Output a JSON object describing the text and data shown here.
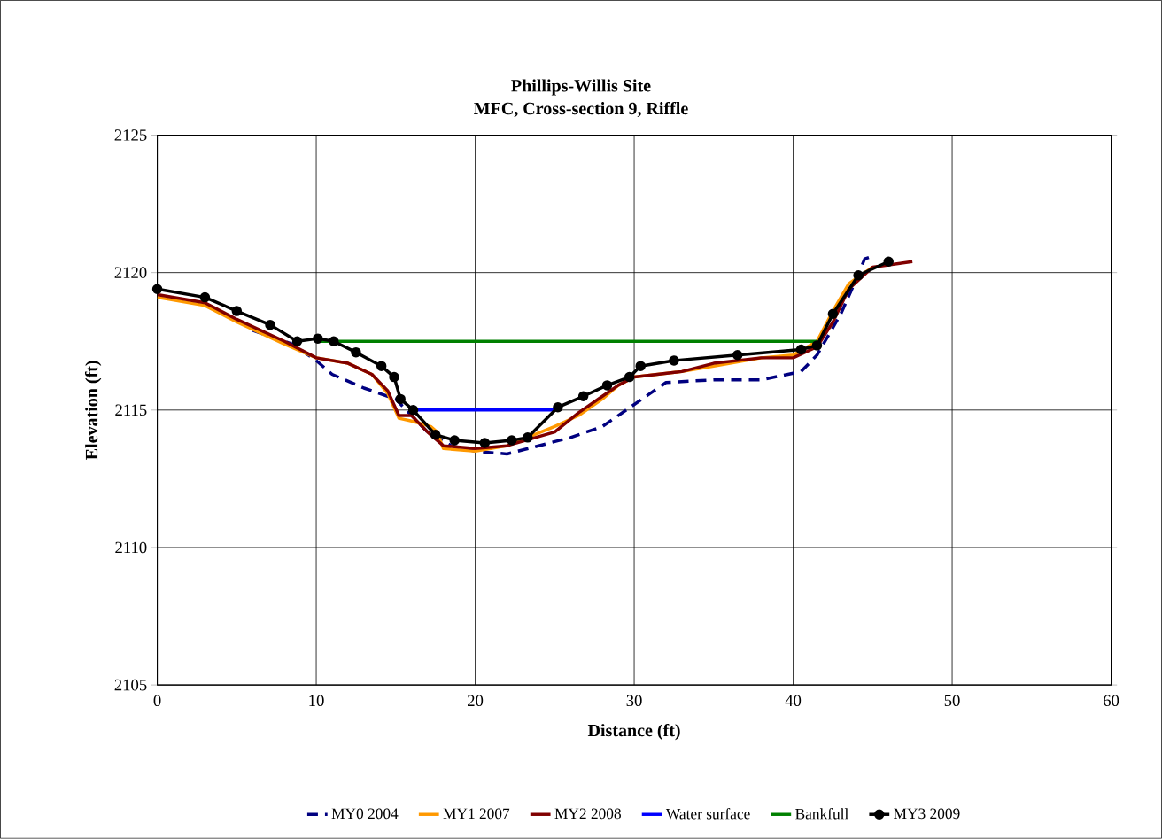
{
  "chart_data": {
    "type": "line",
    "title": "Phillips-Willis Site",
    "subtitle": "MFC, Cross-section 9, Riffle",
    "xlabel": "Distance (ft)",
    "ylabel": "Elevation (ft)",
    "xlim": [
      0,
      60
    ],
    "xticks": [
      0,
      10,
      20,
      30,
      40,
      50,
      60
    ],
    "ylim": [
      2105,
      2125
    ],
    "yticks": [
      2105,
      2110,
      2115,
      2120,
      2125
    ],
    "grid": true,
    "legend": "bottom",
    "series": [
      {
        "name": "MY0 2004",
        "color": "#000080",
        "line_style": "dashed",
        "marker": "none",
        "x": [
          6,
          8.5,
          10,
          11,
          13,
          15,
          17,
          18.5,
          20,
          22,
          24,
          26,
          28,
          29.5,
          31,
          32,
          35,
          38,
          40.5,
          41.5,
          43,
          44,
          44.5,
          45
        ],
        "values": [
          2117.9,
          2117.4,
          2116.8,
          2116.3,
          2115.8,
          2115.4,
          2114.2,
          2113.7,
          2113.5,
          2113.4,
          2113.7,
          2114.0,
          2114.4,
          2115.0,
          2115.6,
          2116.0,
          2116.1,
          2116.1,
          2116.4,
          2117.0,
          2118.5,
          2119.8,
          2120.5,
          2120.6
        ]
      },
      {
        "name": "MY1 2007",
        "color": "#ff9900",
        "line_style": "solid",
        "marker": "none",
        "x": [
          0,
          3,
          5,
          8,
          10,
          12,
          13.5,
          14.5,
          15.2,
          16,
          17.2,
          17.6,
          18,
          20,
          22,
          25,
          26.5,
          28,
          29,
          30,
          33,
          35,
          38,
          40,
          41.5,
          42.5,
          43.5,
          45
        ],
        "values": [
          2119.1,
          2118.8,
          2118.2,
          2117.4,
          2116.9,
          2116.7,
          2116.3,
          2115.6,
          2114.7,
          2114.6,
          2114.4,
          2114.2,
          2113.6,
          2113.5,
          2113.7,
          2114.4,
          2114.8,
          2115.4,
          2115.9,
          2116.2,
          2116.4,
          2116.6,
          2116.9,
          2117.0,
          2117.5,
          2118.6,
          2119.6,
          2120.2
        ]
      },
      {
        "name": "MY2 2008",
        "color": "#800000",
        "line_style": "solid",
        "marker": "none",
        "x": [
          0,
          3,
          5,
          8,
          10,
          12,
          13.5,
          14.5,
          15.2,
          16,
          17,
          18,
          20,
          22,
          25,
          26.5,
          28,
          29,
          30,
          33,
          35,
          38,
          40,
          41.5,
          42.5,
          43.5,
          45,
          47.5
        ],
        "values": [
          2119.2,
          2118.9,
          2118.3,
          2117.5,
          2116.9,
          2116.7,
          2116.3,
          2115.7,
          2114.8,
          2114.8,
          2114.2,
          2113.7,
          2113.6,
          2113.7,
          2114.2,
          2114.9,
          2115.5,
          2115.9,
          2116.2,
          2116.4,
          2116.7,
          2116.9,
          2116.9,
          2117.3,
          2118.2,
          2119.4,
          2120.2,
          2120.4
        ]
      },
      {
        "name": "Water surface",
        "color": "#0000ff",
        "line_style": "solid",
        "marker": "none",
        "x": [
          16,
          25
        ],
        "values": [
          2115,
          2115
        ]
      },
      {
        "name": "Bankfull",
        "color": "#008000",
        "line_style": "solid",
        "marker": "none",
        "x": [
          10,
          41.5
        ],
        "values": [
          2117.5,
          2117.5
        ]
      },
      {
        "name": "MY3 2009",
        "color": "#000000",
        "line_style": "solid",
        "marker": "circle",
        "x": [
          0,
          3,
          5,
          7.1,
          8.8,
          10.1,
          11.1,
          12.5,
          14.1,
          14.9,
          15.3,
          16.1,
          17.5,
          18.7,
          20.6,
          22.3,
          23.3,
          25.2,
          26.8,
          28.3,
          29.7,
          30.4,
          32.5,
          36.5,
          40.5,
          41.5,
          42.5,
          44.1,
          46
        ],
        "values": [
          2119.4,
          2119.1,
          2118.6,
          2118.1,
          2117.5,
          2117.6,
          2117.5,
          2117.1,
          2116.6,
          2116.2,
          2115.4,
          2115.0,
          2114.1,
          2113.9,
          2113.8,
          2113.9,
          2114.0,
          2115.1,
          2115.5,
          2115.9,
          2116.2,
          2116.6,
          2116.8,
          2117.0,
          2117.2,
          2117.35,
          2118.5,
          2119.9,
          2120.4
        ]
      }
    ]
  }
}
